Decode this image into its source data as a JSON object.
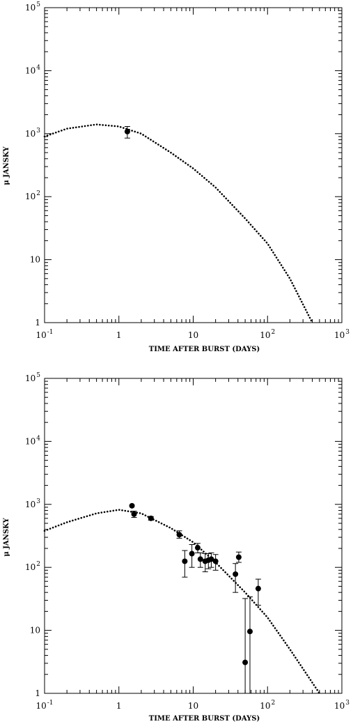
{
  "chart_data": [
    {
      "type": "scatter",
      "xlabel": "TIME AFTER BURST (DAYS)",
      "ylabel": "μ JANSKY",
      "x_scale": "log",
      "y_scale": "log",
      "xlim": [
        0.1,
        1000
      ],
      "ylim": [
        1,
        100000
      ],
      "x_ticks": [
        {
          "value": 0.1,
          "base": "10",
          "exp": "-1"
        },
        {
          "value": 1,
          "base": "1",
          "exp": ""
        },
        {
          "value": 10,
          "base": "10",
          "exp": ""
        },
        {
          "value": 100,
          "base": "10",
          "exp": "2"
        },
        {
          "value": 1000,
          "base": "10",
          "exp": "3"
        }
      ],
      "y_ticks": [
        {
          "value": 1,
          "base": "1",
          "exp": ""
        },
        {
          "value": 10,
          "base": "10",
          "exp": ""
        },
        {
          "value": 100,
          "base": "10",
          "exp": "2"
        },
        {
          "value": 1000,
          "base": "10",
          "exp": "3"
        },
        {
          "value": 10000,
          "base": "10",
          "exp": "4"
        },
        {
          "value": 100000,
          "base": "10",
          "exp": "5"
        }
      ],
      "grid": false,
      "model_curve": {
        "style": "dotted",
        "points": [
          [
            0.1,
            900
          ],
          [
            0.2,
            1200
          ],
          [
            0.5,
            1400
          ],
          [
            1,
            1300
          ],
          [
            2,
            1000
          ],
          [
            5,
            500
          ],
          [
            10,
            280
          ],
          [
            20,
            140
          ],
          [
            50,
            45
          ],
          [
            100,
            18
          ],
          [
            200,
            5
          ],
          [
            400,
            1
          ]
        ]
      },
      "points": [
        {
          "x": 1.3,
          "y": 1080,
          "err_low": 850,
          "err_high": 1300
        }
      ]
    },
    {
      "type": "scatter",
      "xlabel": "TIME AFTER BURST (DAYS)",
      "ylabel": "μ JANSKY",
      "x_scale": "log",
      "y_scale": "log",
      "xlim": [
        0.1,
        1000
      ],
      "ylim": [
        1,
        100000
      ],
      "x_ticks": [
        {
          "value": 0.1,
          "base": "10",
          "exp": "-1"
        },
        {
          "value": 1,
          "base": "1",
          "exp": ""
        },
        {
          "value": 10,
          "base": "10",
          "exp": ""
        },
        {
          "value": 100,
          "base": "10",
          "exp": "2"
        },
        {
          "value": 1000,
          "base": "10",
          "exp": "3"
        }
      ],
      "y_ticks": [
        {
          "value": 1,
          "base": "1",
          "exp": ""
        },
        {
          "value": 10,
          "base": "10",
          "exp": ""
        },
        {
          "value": 100,
          "base": "10",
          "exp": "2"
        },
        {
          "value": 1000,
          "base": "10",
          "exp": "3"
        },
        {
          "value": 10000,
          "base": "10",
          "exp": "4"
        },
        {
          "value": 100000,
          "base": "10",
          "exp": "5"
        }
      ],
      "grid": false,
      "model_curve": {
        "style": "dotted",
        "points": [
          [
            0.1,
            380
          ],
          [
            0.2,
            520
          ],
          [
            0.5,
            720
          ],
          [
            1,
            820
          ],
          [
            2,
            720
          ],
          [
            5,
            420
          ],
          [
            10,
            250
          ],
          [
            20,
            120
          ],
          [
            50,
            40
          ],
          [
            100,
            16
          ],
          [
            200,
            5
          ],
          [
            500,
            1
          ]
        ]
      },
      "points": [
        {
          "x": 1.5,
          "y": 950,
          "err_low": null,
          "err_high": null
        },
        {
          "x": 1.6,
          "y": 700,
          "err_low": 620,
          "err_high": 780
        },
        {
          "x": 2.7,
          "y": 600,
          "err_low": 560,
          "err_high": 640
        },
        {
          "x": 6.5,
          "y": 330,
          "err_low": 290,
          "err_high": 380
        },
        {
          "x": 7.7,
          "y": 125,
          "err_low": 70,
          "err_high": 185
        },
        {
          "x": 9.6,
          "y": 165,
          "err_low": 100,
          "err_high": 230
        },
        {
          "x": 11.5,
          "y": 205,
          "err_low": 170,
          "err_high": 240
        },
        {
          "x": 12.5,
          "y": 135,
          "err_low": 100,
          "err_high": 170
        },
        {
          "x": 14.5,
          "y": 125,
          "err_low": 85,
          "err_high": 165
        },
        {
          "x": 16,
          "y": 130,
          "err_low": 95,
          "err_high": 165
        },
        {
          "x": 17.5,
          "y": 135,
          "err_low": 100,
          "err_high": 170
        },
        {
          "x": 20,
          "y": 125,
          "err_low": 90,
          "err_high": 160
        },
        {
          "x": 37,
          "y": 78,
          "err_low": 40,
          "err_high": 115
        },
        {
          "x": 41,
          "y": 145,
          "err_low": 120,
          "err_high": 175
        },
        {
          "x": 50,
          "y": 3.1,
          "err_low": 1,
          "err_high": 32
        },
        {
          "x": 58,
          "y": 9.6,
          "err_low": 1,
          "err_high": 34
        },
        {
          "x": 75,
          "y": 46,
          "err_low": 25,
          "err_high": 65
        }
      ]
    }
  ]
}
